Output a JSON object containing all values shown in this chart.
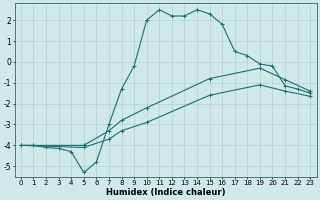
{
  "title": "",
  "xlabel": "Humidex (Indice chaleur)",
  "ylabel": "",
  "xlim": [
    -0.5,
    23.5
  ],
  "ylim": [
    -5.5,
    2.8
  ],
  "yticks": [
    -5,
    -4,
    -3,
    -2,
    -1,
    0,
    1,
    2
  ],
  "xticks": [
    0,
    1,
    2,
    3,
    4,
    5,
    6,
    7,
    8,
    9,
    10,
    11,
    12,
    13,
    14,
    15,
    16,
    17,
    18,
    19,
    20,
    21,
    22,
    23
  ],
  "bg_color": "#cfe8e8",
  "grid_color": "#aacccc",
  "line_color": "#1a7070",
  "line1_x": [
    0,
    1,
    2,
    3,
    4,
    5,
    6,
    7,
    8,
    9,
    10,
    11,
    12,
    13,
    14,
    15,
    16,
    17,
    18,
    19,
    20,
    21,
    22,
    23
  ],
  "line1_y": [
    -4.0,
    -4.0,
    -4.1,
    -4.15,
    -4.3,
    -5.3,
    -4.8,
    -3.0,
    -1.3,
    -0.2,
    2.0,
    2.5,
    2.2,
    2.2,
    2.5,
    2.3,
    1.8,
    0.5,
    0.3,
    -0.1,
    -0.2,
    -1.15,
    -1.3,
    -1.5
  ],
  "line2_x": [
    0,
    5,
    7,
    8,
    10,
    15,
    19,
    21,
    23
  ],
  "line2_y": [
    -4.0,
    -4.0,
    -3.3,
    -2.8,
    -2.2,
    -0.8,
    -0.3,
    -0.85,
    -1.4
  ],
  "line3_x": [
    0,
    5,
    7,
    8,
    10,
    15,
    19,
    21,
    23
  ],
  "line3_y": [
    -4.0,
    -4.1,
    -3.7,
    -3.3,
    -2.9,
    -1.6,
    -1.1,
    -1.4,
    -1.65
  ]
}
